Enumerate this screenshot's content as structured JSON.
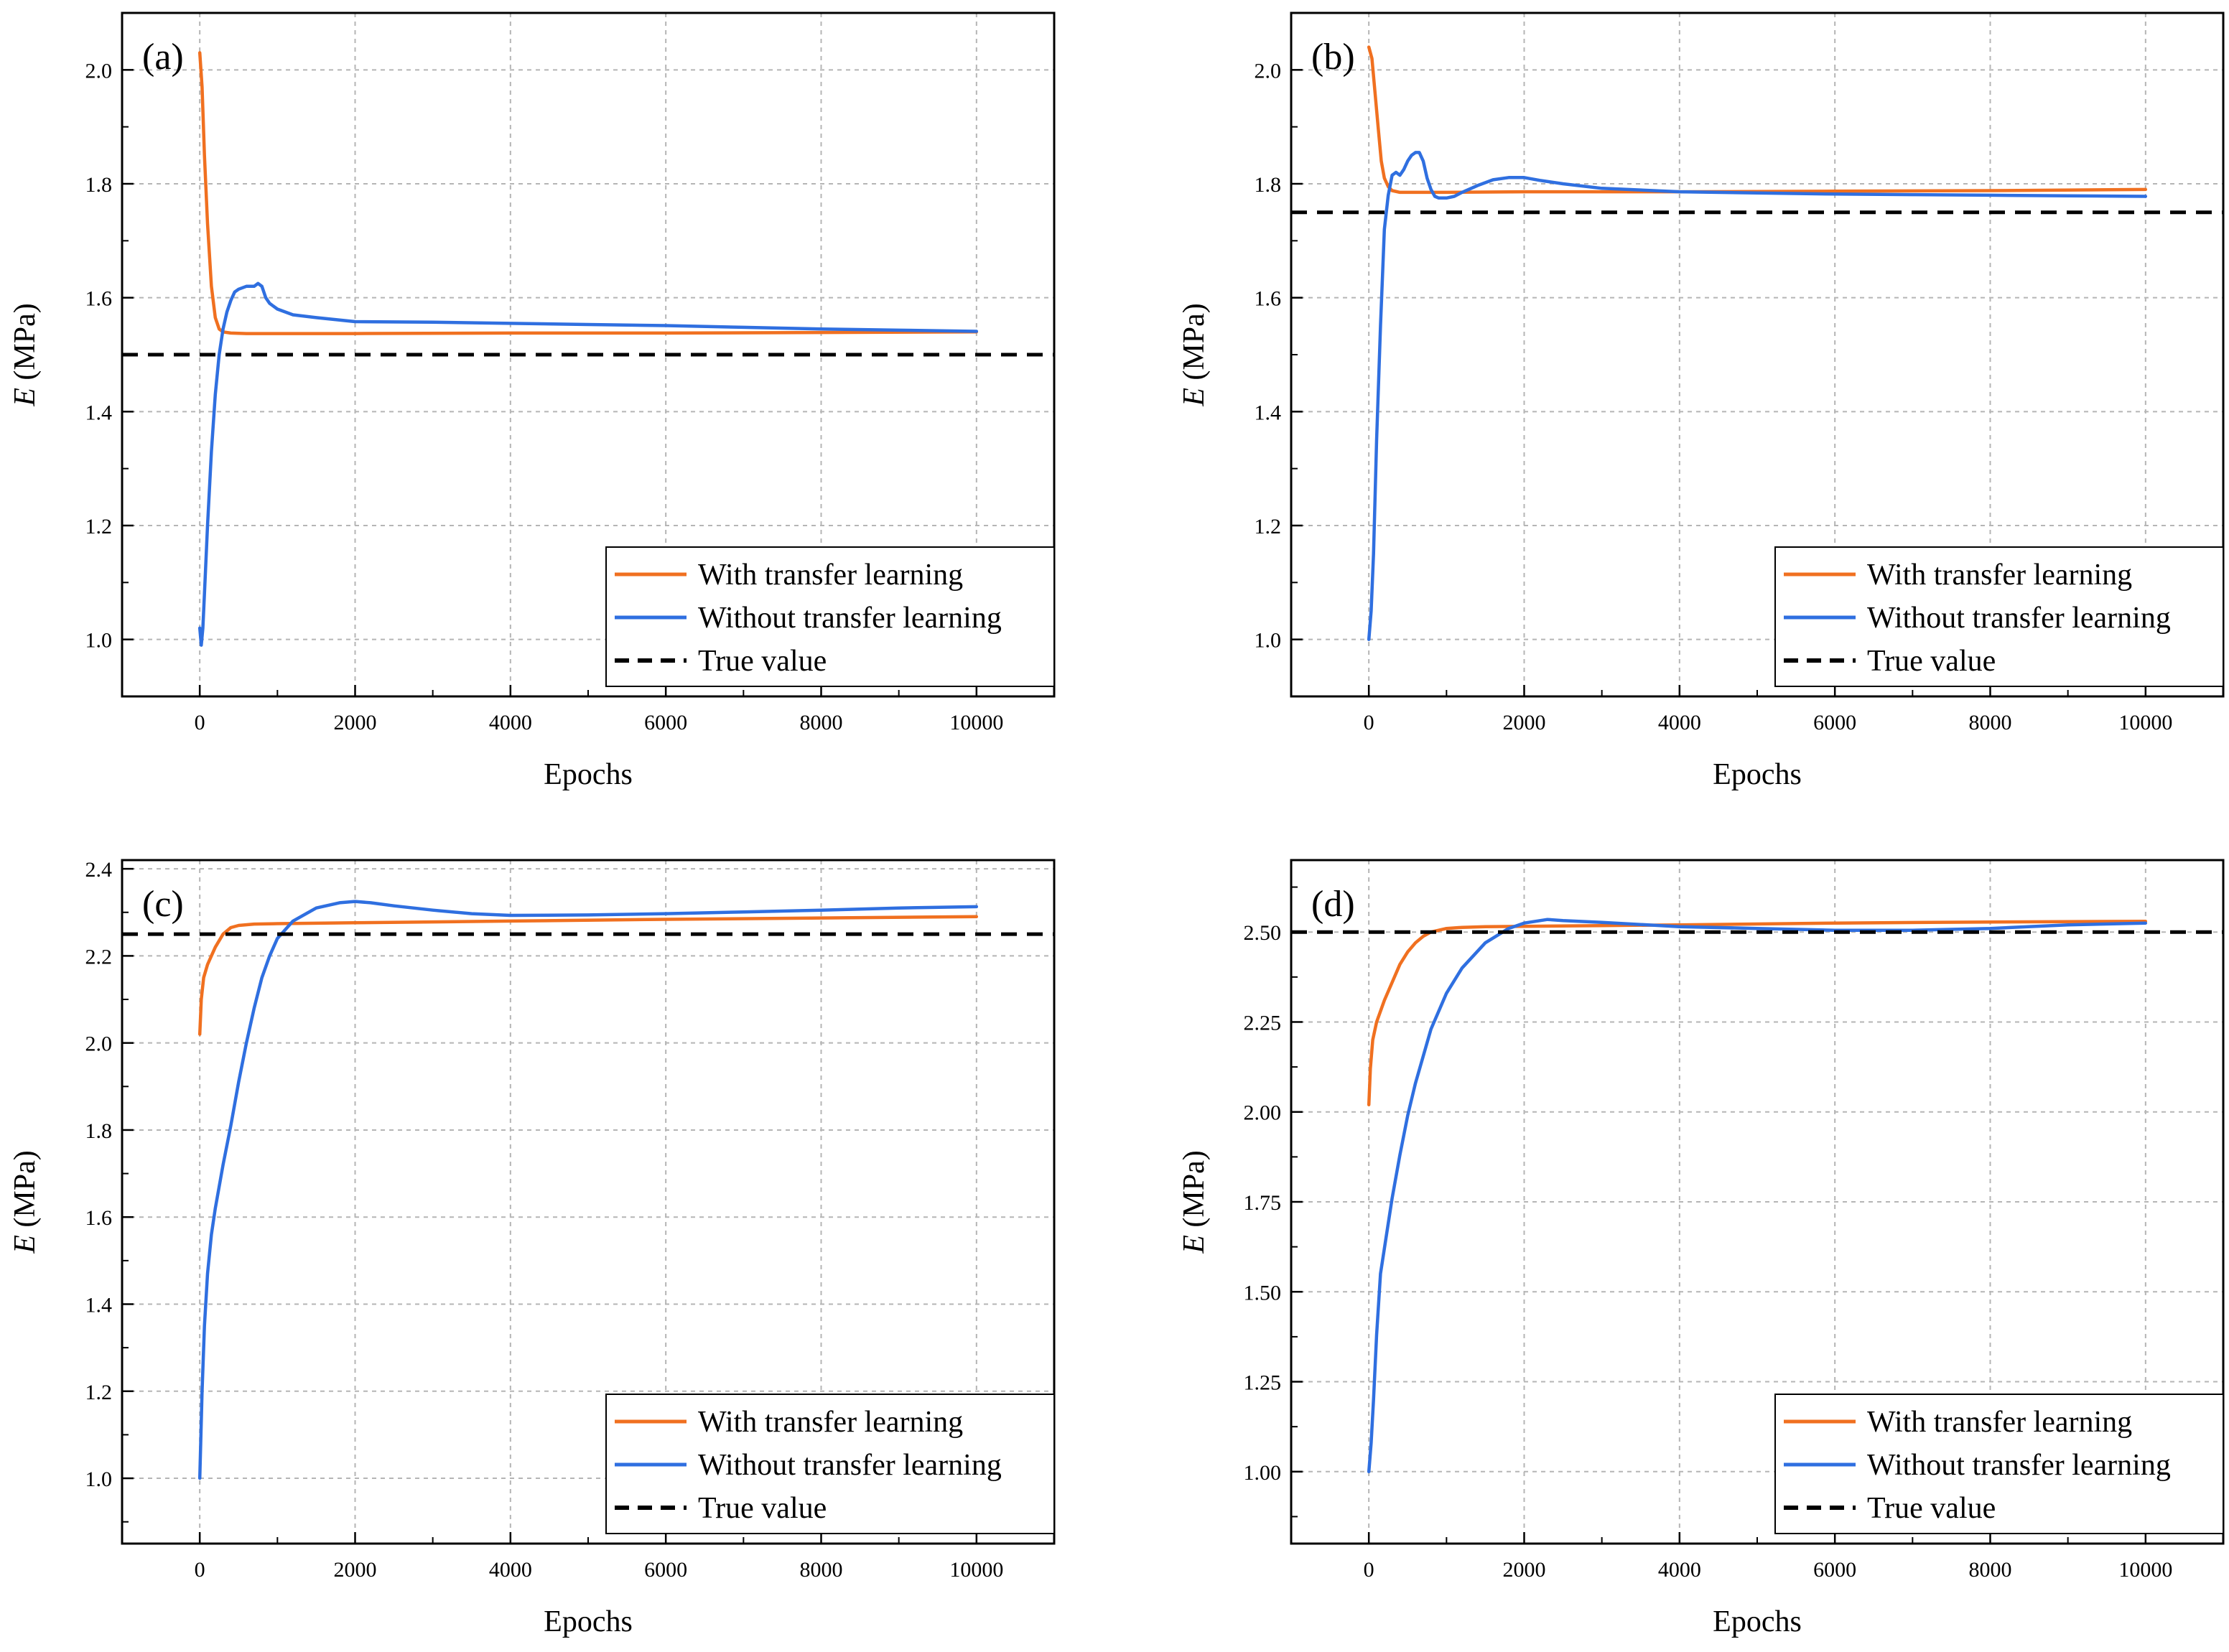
{
  "figure": {
    "legend_entries": [
      "With transfer learning",
      "Without transfer learning",
      "True value"
    ],
    "colors": {
      "with_transfer": "#F07020",
      "without_transfer": "#2F6FE0",
      "true_value": "#000000",
      "grid": "#b5b5b5"
    }
  },
  "chart_data": [
    {
      "type": "line",
      "panel_label": "(a)",
      "xlabel": "Epochs",
      "ylabel_symbol": "E",
      "ylabel_unit": " (MPa)",
      "xlim": [
        -1000,
        11000
      ],
      "ylim": [
        0.9,
        2.1
      ],
      "xticks": [
        0,
        2000,
        4000,
        6000,
        8000,
        10000
      ],
      "xtick_labels": [
        "0",
        "2000",
        "4000",
        "6000",
        "8000",
        "10000"
      ],
      "yticks": [
        1.0,
        1.2,
        1.4,
        1.6,
        1.8,
        2.0
      ],
      "ytick_labels": [
        "1.0",
        "1.2",
        "1.4",
        "1.6",
        "1.8",
        "2.0"
      ],
      "legend_position": "bottom-right",
      "true_value": 1.5,
      "series": [
        {
          "name": "With transfer learning",
          "color": "#F07020",
          "x": [
            0,
            30,
            60,
            100,
            150,
            200,
            250,
            300,
            400,
            600,
            1000,
            2000,
            4000,
            6000,
            8000,
            10000
          ],
          "y": [
            2.03,
            1.97,
            1.85,
            1.73,
            1.62,
            1.565,
            1.545,
            1.54,
            1.538,
            1.537,
            1.537,
            1.537,
            1.538,
            1.538,
            1.539,
            1.54
          ]
        },
        {
          "name": "Without transfer learning",
          "color": "#2F6FE0",
          "x": [
            0,
            20,
            40,
            60,
            100,
            150,
            200,
            250,
            300,
            350,
            400,
            450,
            500,
            600,
            700,
            750,
            800,
            850,
            900,
            1000,
            1200,
            1500,
            2000,
            3000,
            4000,
            5000,
            6000,
            7000,
            8000,
            9000,
            10000
          ],
          "y": [
            1.02,
            0.99,
            1.02,
            1.08,
            1.2,
            1.33,
            1.43,
            1.5,
            1.545,
            1.575,
            1.595,
            1.61,
            1.615,
            1.62,
            1.62,
            1.625,
            1.62,
            1.6,
            1.59,
            1.58,
            1.57,
            1.565,
            1.558,
            1.557,
            1.555,
            1.553,
            1.551,
            1.548,
            1.545,
            1.543,
            1.541
          ]
        },
        {
          "name": "True value",
          "color": "#000000",
          "x": [
            -1000,
            11000
          ],
          "y": [
            1.5,
            1.5
          ]
        }
      ]
    },
    {
      "type": "line",
      "panel_label": "(b)",
      "xlabel": "Epochs",
      "ylabel_symbol": "E",
      "ylabel_unit": " (MPa)",
      "xlim": [
        -1000,
        11000
      ],
      "ylim": [
        0.9,
        2.1
      ],
      "xticks": [
        0,
        2000,
        4000,
        6000,
        8000,
        10000
      ],
      "xtick_labels": [
        "0",
        "2000",
        "4000",
        "6000",
        "8000",
        "10000"
      ],
      "yticks": [
        1.0,
        1.2,
        1.4,
        1.6,
        1.8,
        2.0
      ],
      "ytick_labels": [
        "1.0",
        "1.2",
        "1.4",
        "1.6",
        "1.8",
        "2.0"
      ],
      "legend_position": "bottom-right",
      "true_value": 1.75,
      "series": [
        {
          "name": "With transfer learning",
          "color": "#F07020",
          "x": [
            0,
            40,
            80,
            120,
            160,
            200,
            250,
            300,
            400,
            600,
            1000,
            2000,
            4000,
            6000,
            8000,
            10000
          ],
          "y": [
            2.04,
            2.02,
            1.96,
            1.9,
            1.84,
            1.81,
            1.795,
            1.788,
            1.785,
            1.785,
            1.785,
            1.786,
            1.786,
            1.787,
            1.788,
            1.79
          ]
        },
        {
          "name": "Without transfer learning",
          "color": "#2F6FE0",
          "x": [
            0,
            30,
            60,
            100,
            150,
            200,
            250,
            300,
            350,
            400,
            450,
            500,
            550,
            600,
            650,
            700,
            750,
            800,
            850,
            900,
            1000,
            1100,
            1200,
            1400,
            1600,
            1800,
            2000,
            2200,
            2500,
            3000,
            4000,
            5000,
            6000,
            7000,
            8000,
            9000,
            10000
          ],
          "y": [
            1.0,
            1.05,
            1.15,
            1.35,
            1.55,
            1.72,
            1.78,
            1.815,
            1.82,
            1.815,
            1.825,
            1.84,
            1.85,
            1.855,
            1.855,
            1.84,
            1.81,
            1.79,
            1.778,
            1.775,
            1.775,
            1.778,
            1.785,
            1.797,
            1.807,
            1.811,
            1.811,
            1.806,
            1.8,
            1.792,
            1.786,
            1.784,
            1.782,
            1.781,
            1.78,
            1.779,
            1.778
          ]
        },
        {
          "name": "True value",
          "color": "#000000",
          "x": [
            -1000,
            11000
          ],
          "y": [
            1.75,
            1.75
          ]
        }
      ]
    },
    {
      "type": "line",
      "panel_label": "(c)",
      "xlabel": "Epochs",
      "ylabel_symbol": "E",
      "ylabel_unit": " (MPa)",
      "xlim": [
        -1000,
        11000
      ],
      "ylim": [
        0.85,
        2.42
      ],
      "xticks": [
        0,
        2000,
        4000,
        6000,
        8000,
        10000
      ],
      "xtick_labels": [
        "0",
        "2000",
        "4000",
        "6000",
        "8000",
        "10000"
      ],
      "yticks": [
        1.0,
        1.2,
        1.4,
        1.6,
        1.8,
        2.0,
        2.2,
        2.4
      ],
      "ytick_labels": [
        "1.0",
        "1.2",
        "1.4",
        "1.6",
        "1.8",
        "2.0",
        "2.2",
        "2.4"
      ],
      "legend_position": "bottom-right",
      "true_value": 2.25,
      "series": [
        {
          "name": "With transfer learning",
          "color": "#F07020",
          "x": [
            0,
            20,
            50,
            100,
            200,
            300,
            400,
            500,
            700,
            1000,
            2000,
            3000,
            4000,
            6000,
            8000,
            10000
          ],
          "y": [
            2.02,
            2.1,
            2.15,
            2.18,
            2.22,
            2.25,
            2.265,
            2.27,
            2.273,
            2.274,
            2.276,
            2.278,
            2.28,
            2.284,
            2.287,
            2.29
          ]
        },
        {
          "name": "Without transfer learning",
          "color": "#2F6FE0",
          "x": [
            0,
            30,
            60,
            100,
            150,
            200,
            300,
            400,
            500,
            600,
            700,
            800,
            900,
            1000,
            1200,
            1500,
            1800,
            2000,
            2200,
            2500,
            3000,
            3500,
            4000,
            5000,
            6000,
            7000,
            8000,
            9000,
            10000
          ],
          "y": [
            1.0,
            1.2,
            1.35,
            1.47,
            1.56,
            1.62,
            1.72,
            1.81,
            1.91,
            2.0,
            2.08,
            2.15,
            2.2,
            2.24,
            2.28,
            2.31,
            2.322,
            2.325,
            2.322,
            2.315,
            2.305,
            2.297,
            2.293,
            2.294,
            2.297,
            2.301,
            2.305,
            2.31,
            2.313
          ]
        },
        {
          "name": "True value",
          "color": "#000000",
          "x": [
            -1000,
            11000
          ],
          "y": [
            2.25,
            2.25
          ]
        }
      ]
    },
    {
      "type": "line",
      "panel_label": "(d)",
      "xlabel": "Epochs",
      "ylabel_symbol": "E",
      "ylabel_unit": " (MPa)",
      "xlim": [
        -1000,
        11000
      ],
      "ylim": [
        0.8,
        2.7
      ],
      "xticks": [
        0,
        2000,
        4000,
        6000,
        8000,
        10000
      ],
      "xtick_labels": [
        "0",
        "2000",
        "4000",
        "6000",
        "8000",
        "10000"
      ],
      "yticks": [
        1.0,
        1.25,
        1.5,
        1.75,
        2.0,
        2.25,
        2.5
      ],
      "ytick_labels": [
        "1.00",
        "1.25",
        "1.50",
        "1.75",
        "2.00",
        "2.25",
        "2.50"
      ],
      "legend_position": "bottom-right",
      "true_value": 2.5,
      "series": [
        {
          "name": "With transfer learning",
          "color": "#F07020",
          "x": [
            0,
            20,
            50,
            100,
            200,
            300,
            400,
            500,
            600,
            700,
            800,
            1000,
            1200,
            1500,
            2000,
            3000,
            4000,
            6000,
            8000,
            10000
          ],
          "y": [
            2.02,
            2.12,
            2.2,
            2.25,
            2.31,
            2.36,
            2.41,
            2.445,
            2.47,
            2.488,
            2.5,
            2.51,
            2.513,
            2.515,
            2.516,
            2.518,
            2.52,
            2.525,
            2.528,
            2.53
          ]
        },
        {
          "name": "Without transfer learning",
          "color": "#2F6FE0",
          "x": [
            0,
            30,
            60,
            100,
            150,
            200,
            300,
            400,
            500,
            600,
            800,
            1000,
            1200,
            1500,
            1800,
            2000,
            2300,
            2500,
            3000,
            4000,
            5000,
            6000,
            7000,
            8000,
            9000,
            10000
          ],
          "y": [
            1.0,
            1.08,
            1.2,
            1.38,
            1.55,
            1.62,
            1.76,
            1.88,
            1.99,
            2.08,
            2.23,
            2.33,
            2.4,
            2.47,
            2.51,
            2.525,
            2.535,
            2.532,
            2.527,
            2.515,
            2.51,
            2.505,
            2.505,
            2.51,
            2.52,
            2.525
          ]
        },
        {
          "name": "True value",
          "color": "#000000",
          "x": [
            -1000,
            11000
          ],
          "y": [
            2.5,
            2.5
          ]
        }
      ]
    }
  ]
}
